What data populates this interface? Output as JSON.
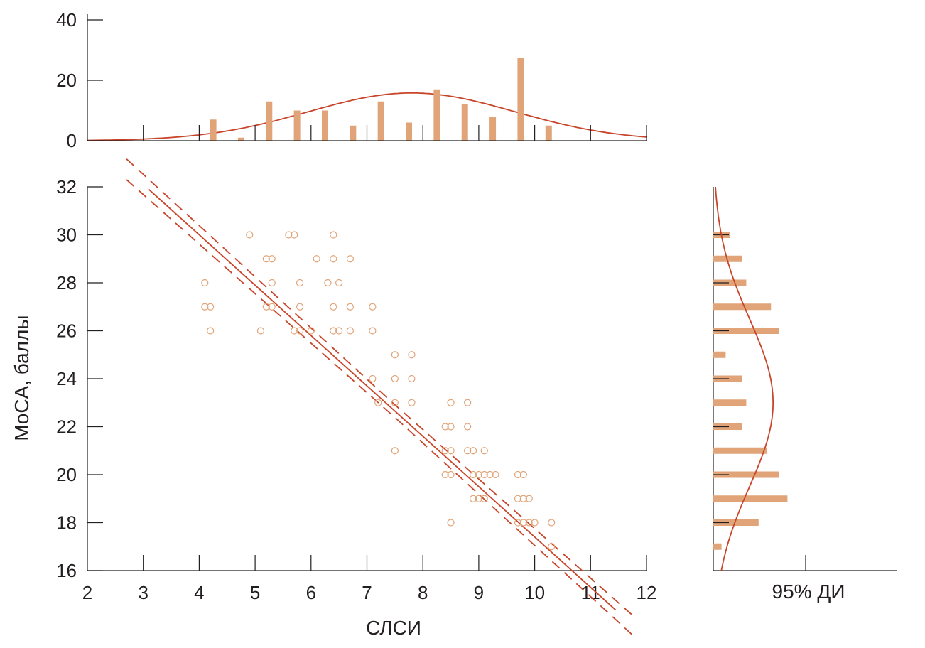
{
  "colors": {
    "bar": "#e0a478",
    "line": "#c8452a",
    "point": "#e0a478",
    "axis": "#231f20"
  },
  "chart_data": [
    {
      "id": "scatter",
      "type": "scatter",
      "xlabel": "СЛСИ",
      "ylabel": "MoCA, баллы",
      "xlim": [
        2,
        12
      ],
      "ylim": [
        16,
        32
      ],
      "x_ticks": [
        2,
        3,
        4,
        5,
        6,
        7,
        8,
        9,
        10,
        11,
        12
      ],
      "y_ticks": [
        16,
        18,
        20,
        22,
        24,
        26,
        28,
        30,
        32
      ],
      "points": [
        [
          4.1,
          28
        ],
        [
          4.1,
          27
        ],
        [
          4.2,
          27
        ],
        [
          4.2,
          26
        ],
        [
          4.9,
          30
        ],
        [
          5.1,
          26
        ],
        [
          5.2,
          29
        ],
        [
          5.3,
          29
        ],
        [
          5.3,
          28
        ],
        [
          5.2,
          27
        ],
        [
          5.3,
          27
        ],
        [
          5.6,
          30
        ],
        [
          5.7,
          30
        ],
        [
          5.8,
          28
        ],
        [
          5.8,
          27
        ],
        [
          5.7,
          26
        ],
        [
          5.8,
          26
        ],
        [
          6.0,
          26
        ],
        [
          6.1,
          29
        ],
        [
          6.3,
          28
        ],
        [
          6.4,
          30
        ],
        [
          6.4,
          29
        ],
        [
          6.4,
          27
        ],
        [
          6.4,
          26
        ],
        [
          6.5,
          28
        ],
        [
          6.5,
          26
        ],
        [
          6.7,
          29
        ],
        [
          6.7,
          27
        ],
        [
          6.7,
          26
        ],
        [
          7.1,
          27
        ],
        [
          7.1,
          26
        ],
        [
          7.1,
          24
        ],
        [
          7.2,
          23
        ],
        [
          7.5,
          25
        ],
        [
          7.5,
          24
        ],
        [
          7.5,
          23
        ],
        [
          7.5,
          21
        ],
        [
          7.8,
          25
        ],
        [
          7.8,
          24
        ],
        [
          7.8,
          23
        ],
        [
          8.4,
          22
        ],
        [
          8.4,
          21
        ],
        [
          8.4,
          20
        ],
        [
          8.5,
          23
        ],
        [
          8.5,
          22
        ],
        [
          8.5,
          21
        ],
        [
          8.5,
          20
        ],
        [
          8.5,
          18
        ],
        [
          8.8,
          23
        ],
        [
          8.8,
          22
        ],
        [
          8.8,
          21
        ],
        [
          8.9,
          21
        ],
        [
          8.9,
          20
        ],
        [
          8.9,
          19
        ],
        [
          9.0,
          20
        ],
        [
          9.0,
          19
        ],
        [
          9.1,
          21
        ],
        [
          9.1,
          20
        ],
        [
          9.1,
          19
        ],
        [
          9.2,
          20
        ],
        [
          9.3,
          20
        ],
        [
          9.7,
          20
        ],
        [
          9.7,
          19
        ],
        [
          9.7,
          18
        ],
        [
          9.8,
          20
        ],
        [
          9.8,
          19
        ],
        [
          9.8,
          18
        ],
        [
          9.9,
          19
        ],
        [
          9.9,
          18
        ],
        [
          10.0,
          18
        ],
        [
          10.3,
          18
        ],
        [
          10.3,
          17
        ]
      ],
      "regression": {
        "x_range": [
          3.1,
          11.45
        ],
        "intercept": 38.4,
        "slope": -2.1
      },
      "ci_band": {
        "half_width": 0.35,
        "x_range": [
          2.7,
          11.8
        ]
      }
    },
    {
      "id": "top-histogram",
      "type": "bar",
      "ylim": [
        0,
        40
      ],
      "y_ticks": [
        0,
        20,
        40
      ],
      "x": [
        4.25,
        4.75,
        5.25,
        5.75,
        6.25,
        6.75,
        7.25,
        7.75,
        8.25,
        8.75,
        9.25,
        9.75,
        10.25
      ],
      "values": [
        7,
        1,
        13,
        10,
        10,
        5,
        13,
        6,
        17,
        12,
        8,
        27.5,
        5
      ],
      "normal_curve": {
        "mean": 7.8,
        "sd": 1.85,
        "peak": 15.8
      }
    },
    {
      "id": "right-histogram",
      "type": "bar",
      "orientation": "horizontal",
      "label": "95% ДИ",
      "y": [
        17,
        18,
        19,
        20,
        21,
        22,
        23,
        24,
        25,
        26,
        27,
        28,
        29,
        30
      ],
      "values": [
        2,
        11,
        18,
        16,
        13,
        7,
        8,
        7,
        3,
        16,
        14,
        8,
        7,
        4
      ],
      "normal_curve": {
        "mean": 23.0,
        "sd": 3.5,
        "peak": 14.5
      }
    }
  ]
}
